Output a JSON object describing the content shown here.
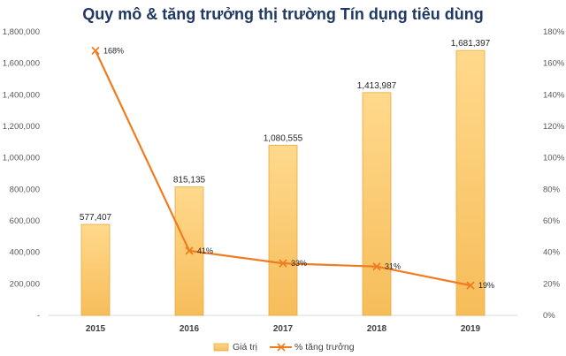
{
  "chart_data": {
    "type": "bar",
    "title": "Quy mô & tăng trưởng thị trường Tín dụng tiêu dùng",
    "categories": [
      "2015",
      "2016",
      "2017",
      "2018",
      "2019"
    ],
    "series": [
      {
        "name": "Giá trị",
        "type": "bar",
        "axis": "left",
        "color": "#f9c86a",
        "values": [
          577407,
          815135,
          1080555,
          1413987,
          1681397
        ],
        "labels": [
          "577,407",
          "815,135",
          "1,080,555",
          "1,413,987",
          "1,681,397"
        ]
      },
      {
        "name": "% tăng trưởng",
        "type": "line",
        "axis": "right",
        "color": "#f07c22",
        "values": [
          168,
          41,
          33,
          31,
          19
        ],
        "labels": [
          "168%",
          "41%",
          "33%",
          "31%",
          "19%"
        ]
      }
    ],
    "y_left": {
      "ylim": [
        0,
        1800000
      ],
      "ticks": [
        0,
        200000,
        400000,
        600000,
        800000,
        1000000,
        1200000,
        1400000,
        1600000,
        1800000
      ],
      "tick_labels": [
        "-",
        "200,000",
        "400,000",
        "600,000",
        "800,000",
        "1,000,000",
        "1,200,000",
        "1,400,000",
        "1,600,000",
        "1,800,000"
      ]
    },
    "y_right": {
      "ylim": [
        0,
        180
      ],
      "ticks": [
        0,
        20,
        40,
        60,
        80,
        100,
        120,
        140,
        160,
        180
      ],
      "tick_labels": [
        "0%",
        "20%",
        "40%",
        "60%",
        "80%",
        "100%",
        "120%",
        "140%",
        "160%",
        "180%"
      ]
    },
    "grid": false,
    "legend_position": "bottom"
  }
}
